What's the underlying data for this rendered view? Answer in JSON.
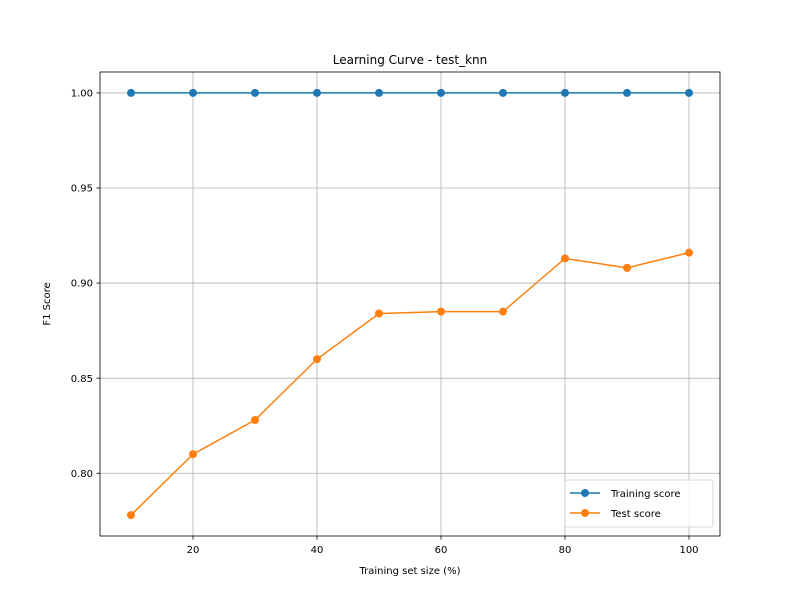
{
  "chart_data": {
    "type": "line",
    "title": "Learning Curve - test_knn",
    "xlabel": "Training set size (%)",
    "ylabel": "F1 Score",
    "x": [
      10,
      20,
      30,
      40,
      50,
      60,
      70,
      80,
      90,
      100
    ],
    "xlim": [
      5,
      105
    ],
    "ylim": [
      0.767,
      1.011
    ],
    "xticks": [
      20,
      40,
      60,
      80,
      100
    ],
    "xtick_labels": [
      "20",
      "40",
      "60",
      "80",
      "100"
    ],
    "yticks": [
      0.8,
      0.85,
      0.9,
      0.95,
      1.0
    ],
    "ytick_labels": [
      "0.80",
      "0.85",
      "0.90",
      "0.95",
      "1.00"
    ],
    "grid": true,
    "legend_position": "lower-right",
    "series": [
      {
        "name": "Training score",
        "color": "#1f77b4",
        "marker": "circle",
        "values": [
          1.0,
          1.0,
          1.0,
          1.0,
          1.0,
          1.0,
          1.0,
          1.0,
          1.0,
          1.0
        ]
      },
      {
        "name": "Test score",
        "color": "#ff7f0e",
        "marker": "circle",
        "values": [
          0.778,
          0.81,
          0.828,
          0.86,
          0.884,
          0.885,
          0.885,
          0.913,
          0.908,
          0.916
        ]
      }
    ]
  }
}
